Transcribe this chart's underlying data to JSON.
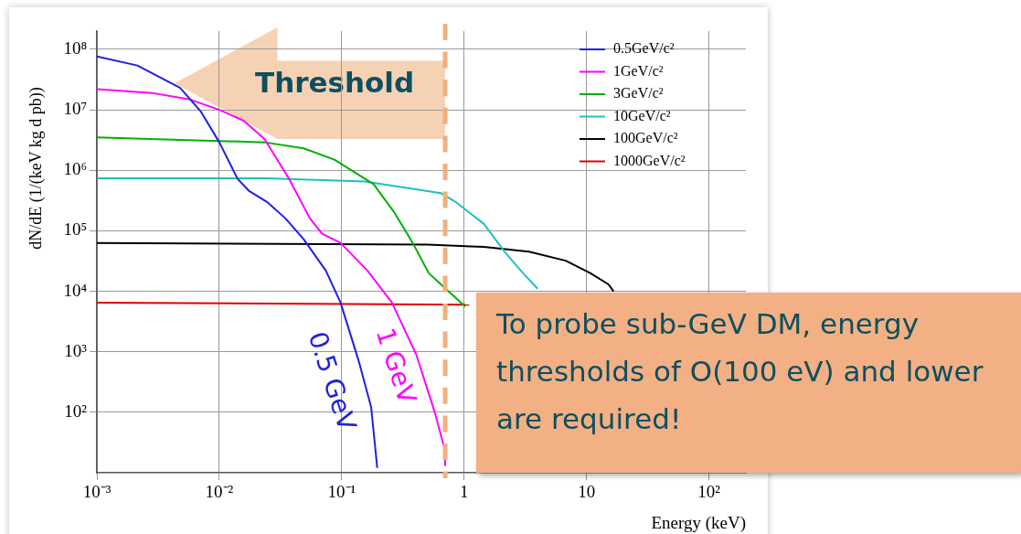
{
  "chart_data": {
    "type": "line",
    "xlabel": "Energy (keV)",
    "ylabel": "dN/dE (1/(keV kg d pb))",
    "log": "xy",
    "grid": true,
    "legend": "top right",
    "marker": "none",
    "line_style": "solid",
    "xlim": [
      0.001,
      200
    ],
    "xticks": [
      {
        "value": 0.001,
        "label": "10⁻³"
      },
      {
        "value": 0.01,
        "label": "10⁻²"
      },
      {
        "value": 0.1,
        "label": "10⁻¹"
      },
      1,
      10,
      {
        "value": 100,
        "label": "10²"
      }
    ],
    "ylim": [
      10,
      200000000
    ],
    "yticks": [
      {
        "value": 100,
        "label": "10²"
      },
      {
        "value": 1000,
        "label": "10³"
      },
      {
        "value": 10000,
        "label": "10⁴"
      },
      {
        "value": 100000,
        "label": "10⁵"
      },
      {
        "value": 1000000,
        "label": "10⁶"
      },
      {
        "value": 10000000,
        "label": "10⁷"
      },
      {
        "value": 100000000,
        "label": "10⁸"
      }
    ],
    "series": [
      {
        "name": "0.5GeV/c²",
        "color": "#2020e0",
        "x": [
          0.001,
          0.00214,
          0.00479,
          0.00708,
          0.01,
          0.0141,
          0.0174,
          0.0245,
          0.0347,
          0.049,
          0.0741,
          0.0977,
          0.138,
          0.174,
          0.195
        ],
        "values": [
          76000000,
          54000000,
          23000000,
          9300000,
          2900000,
          720000,
          460000,
          300000,
          160000,
          72000,
          22000,
          6500,
          690,
          120,
          12
        ]
      },
      {
        "name": "1GeV/c²",
        "color": "#ff00ff",
        "x": [
          0.001,
          0.00282,
          0.00562,
          0.01,
          0.0158,
          0.0234,
          0.0372,
          0.055,
          0.0692,
          0.0977,
          0.162,
          0.257,
          0.407,
          0.575,
          0.692,
          0.7
        ],
        "values": [
          22000000,
          19000000,
          15000000,
          10000000,
          6600000,
          3300000,
          720000,
          160000,
          89000,
          63000,
          22000,
          6500,
          890,
          100,
          25,
          13
        ]
      },
      {
        "name": "3GeV/c²",
        "color": "#00b000",
        "x": [
          0.001,
          0.0234,
          0.049,
          0.0871,
          0.129,
          0.182,
          0.269,
          0.38,
          0.513,
          0.646,
          1.02
        ],
        "values": [
          3500000,
          2900000,
          2300000,
          1500000,
          910000,
          590000,
          200000,
          63000,
          20000,
          13000,
          5600
        ]
      },
      {
        "name": "10GeV/c²",
        "color": "#20c0c0",
        "x": [
          0.001,
          0.0245,
          0.155,
          0.646,
          0.851,
          1.45,
          2.14,
          3.02,
          3.98
        ],
        "values": [
          740000,
          740000,
          650000,
          420000,
          300000,
          130000,
          45000,
          20000,
          11000
        ]
      },
      {
        "name": "100GeV/c²",
        "color": "#000000",
        "x": [
          0.001,
          0.5,
          1.45,
          3.39,
          6.76,
          10.7,
          15.1,
          16.6
        ],
        "values": [
          63000,
          59000,
          54000,
          45000,
          32000,
          20000,
          13000,
          10000
        ]
      },
      {
        "name": "1000GeV/c²",
        "color": "#e00000",
        "x": [
          0.001,
          1.1
        ],
        "values": [
          6500,
          6000
        ]
      }
    ],
    "ref_lines": [
      {
        "axis": "x",
        "value": 0.7,
        "label": "Threshold",
        "color": "#f0b080",
        "line_style": "dashed"
      }
    ],
    "annotations": [
      "0.5 GeV",
      "1 GeV",
      "To probe sub-GeV DM, energy thresholds of O(100 eV) and lower are required!"
    ]
  }
}
